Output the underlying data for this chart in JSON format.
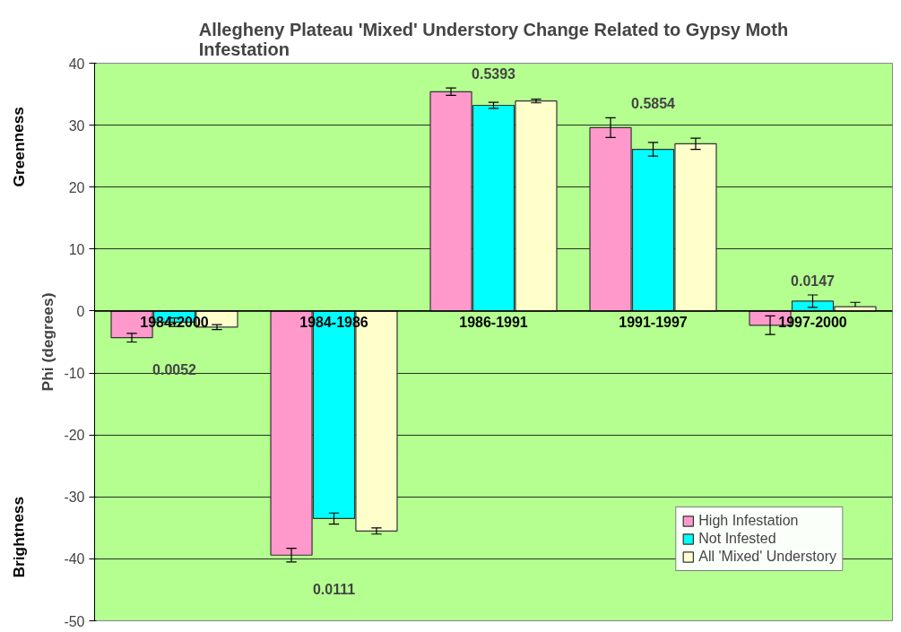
{
  "chart_data": {
    "type": "bar",
    "title": "Allegheny Plateau 'Mixed' Understory Change Related to Gypsy Moth Infestation",
    "ylabel": "Phi (degrees)",
    "categories": [
      "1984-2000",
      "1984-1986",
      "1986-1991",
      "1991-1997",
      "1997-2000"
    ],
    "series": [
      {
        "name": "High Infestation",
        "color": "#ff99cc",
        "values": [
          -4.3,
          -39.4,
          35.4,
          29.6,
          -2.3
        ],
        "errors": [
          0.7,
          1.1,
          0.6,
          1.6,
          1.5
        ]
      },
      {
        "name": "Not Infested",
        "color": "#00ffff",
        "values": [
          -1.8,
          -33.5,
          33.2,
          26.1,
          1.6
        ],
        "errors": [
          0.7,
          0.9,
          0.5,
          1.1,
          1.0
        ]
      },
      {
        "name": "All 'Mixed' Understory",
        "color": "#ffffcc",
        "values": [
          -2.6,
          -35.5,
          33.9,
          27.0,
          0.7
        ],
        "errors": [
          0.4,
          0.5,
          0.3,
          0.9,
          [
            0.7,
            1.4
          ]
        ]
      }
    ],
    "ylim": [
      -50,
      40
    ],
    "yticks": [
      -50,
      -40,
      -30,
      -20,
      -10,
      0,
      10,
      20,
      30,
      40
    ],
    "grid": "y",
    "legend": "bottom right",
    "annotations": [
      "Greenness",
      "Brightness",
      "0.0052",
      "0.0111",
      "0.5393",
      "0.5854",
      "0.0147"
    ]
  }
}
